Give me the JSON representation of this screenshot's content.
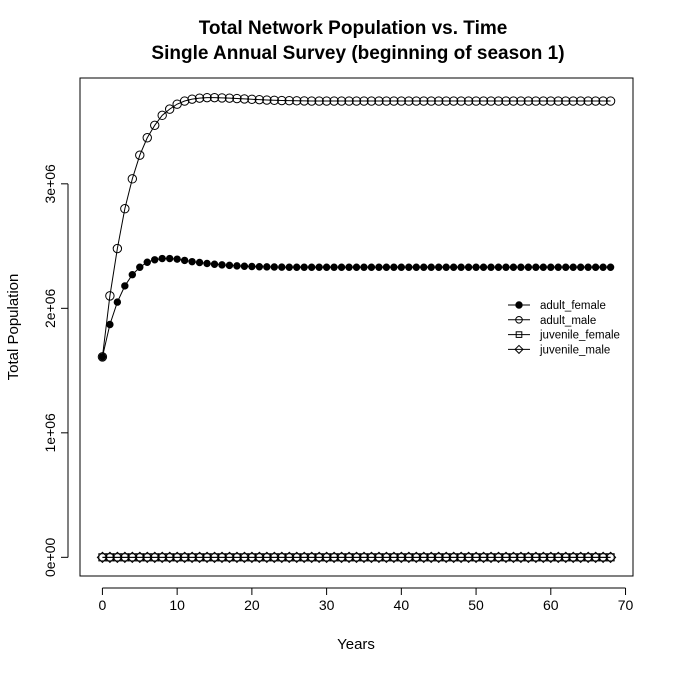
{
  "chart_data": {
    "type": "line",
    "title": "Total Network Population vs. Time",
    "subtitle": "Single Annual Survey (beginning of season 1)",
    "xlabel": "Years",
    "ylabel": "Total Population",
    "xlim": [
      -3,
      71
    ],
    "ylim": [
      -150000,
      3850000
    ],
    "x_ticks": [
      0,
      10,
      20,
      30,
      40,
      50,
      60,
      70
    ],
    "x_tick_labels": [
      "0",
      "10",
      "20",
      "30",
      "40",
      "50",
      "60",
      "70"
    ],
    "y_ticks": [
      0,
      1000000,
      2000000,
      3000000
    ],
    "y_tick_labels": [
      "0e+00",
      "1e+06",
      "2e+06",
      "3e+06"
    ],
    "legend": "right",
    "grid": false,
    "x": [
      0,
      1,
      2,
      3,
      4,
      5,
      6,
      7,
      8,
      9,
      10,
      11,
      12,
      13,
      14,
      15,
      16,
      17,
      18,
      19,
      20,
      21,
      22,
      23,
      24,
      25,
      26,
      27,
      28,
      29,
      30,
      31,
      32,
      33,
      34,
      35,
      36,
      37,
      38,
      39,
      40,
      41,
      42,
      43,
      44,
      45,
      46,
      47,
      48,
      49,
      50,
      51,
      52,
      53,
      54,
      55,
      56,
      57,
      58,
      59,
      60,
      61,
      62,
      63,
      64,
      65,
      66,
      67,
      68
    ],
    "series": [
      {
        "name": "adult_female",
        "marker": "filled-circle",
        "values": [
          1610000,
          1870000,
          2050000,
          2180000,
          2270000,
          2330000,
          2370000,
          2390000,
          2400000,
          2400000,
          2395000,
          2385000,
          2375000,
          2368000,
          2360000,
          2354000,
          2349000,
          2345000,
          2341000,
          2338000,
          2336000,
          2334000,
          2333000,
          2332000,
          2331000,
          2330000,
          2330000,
          2330000,
          2330000,
          2330000,
          2330000,
          2330000,
          2330000,
          2330000,
          2330000,
          2330000,
          2330000,
          2330000,
          2330000,
          2330000,
          2330000,
          2330000,
          2330000,
          2330000,
          2330000,
          2330000,
          2330000,
          2330000,
          2330000,
          2330000,
          2330000,
          2330000,
          2330000,
          2330000,
          2330000,
          2330000,
          2330000,
          2330000,
          2330000,
          2330000,
          2330000,
          2330000,
          2330000,
          2330000,
          2330000,
          2330000,
          2330000,
          2330000,
          2330000
        ]
      },
      {
        "name": "adult_male",
        "marker": "open-circle",
        "values": [
          1610000,
          2100000,
          2480000,
          2800000,
          3040000,
          3230000,
          3370000,
          3470000,
          3550000,
          3600000,
          3640000,
          3665000,
          3680000,
          3688000,
          3692000,
          3692000,
          3690000,
          3688000,
          3685000,
          3682000,
          3679000,
          3676000,
          3673000,
          3671000,
          3669000,
          3668000,
          3667000,
          3666000,
          3665000,
          3665000,
          3665000,
          3665000,
          3665000,
          3665000,
          3665000,
          3665000,
          3665000,
          3665000,
          3665000,
          3665000,
          3665000,
          3665000,
          3665000,
          3665000,
          3665000,
          3665000,
          3665000,
          3665000,
          3665000,
          3665000,
          3665000,
          3665000,
          3665000,
          3665000,
          3665000,
          3665000,
          3665000,
          3665000,
          3665000,
          3665000,
          3665000,
          3665000,
          3665000,
          3665000,
          3665000,
          3665000,
          3665000,
          3665000,
          3665000
        ]
      },
      {
        "name": "juvenile_female",
        "marker": "open-square",
        "values": [
          0,
          0,
          0,
          0,
          0,
          0,
          0,
          0,
          0,
          0,
          0,
          0,
          0,
          0,
          0,
          0,
          0,
          0,
          0,
          0,
          0,
          0,
          0,
          0,
          0,
          0,
          0,
          0,
          0,
          0,
          0,
          0,
          0,
          0,
          0,
          0,
          0,
          0,
          0,
          0,
          0,
          0,
          0,
          0,
          0,
          0,
          0,
          0,
          0,
          0,
          0,
          0,
          0,
          0,
          0,
          0,
          0,
          0,
          0,
          0,
          0,
          0,
          0,
          0,
          0,
          0,
          0,
          0,
          0
        ]
      },
      {
        "name": "juvenile_male",
        "marker": "open-diamond",
        "values": [
          0,
          0,
          0,
          0,
          0,
          0,
          0,
          0,
          0,
          0,
          0,
          0,
          0,
          0,
          0,
          0,
          0,
          0,
          0,
          0,
          0,
          0,
          0,
          0,
          0,
          0,
          0,
          0,
          0,
          0,
          0,
          0,
          0,
          0,
          0,
          0,
          0,
          0,
          0,
          0,
          0,
          0,
          0,
          0,
          0,
          0,
          0,
          0,
          0,
          0,
          0,
          0,
          0,
          0,
          0,
          0,
          0,
          0,
          0,
          0,
          0,
          0,
          0,
          0,
          0,
          0,
          0,
          0,
          0
        ]
      }
    ]
  }
}
